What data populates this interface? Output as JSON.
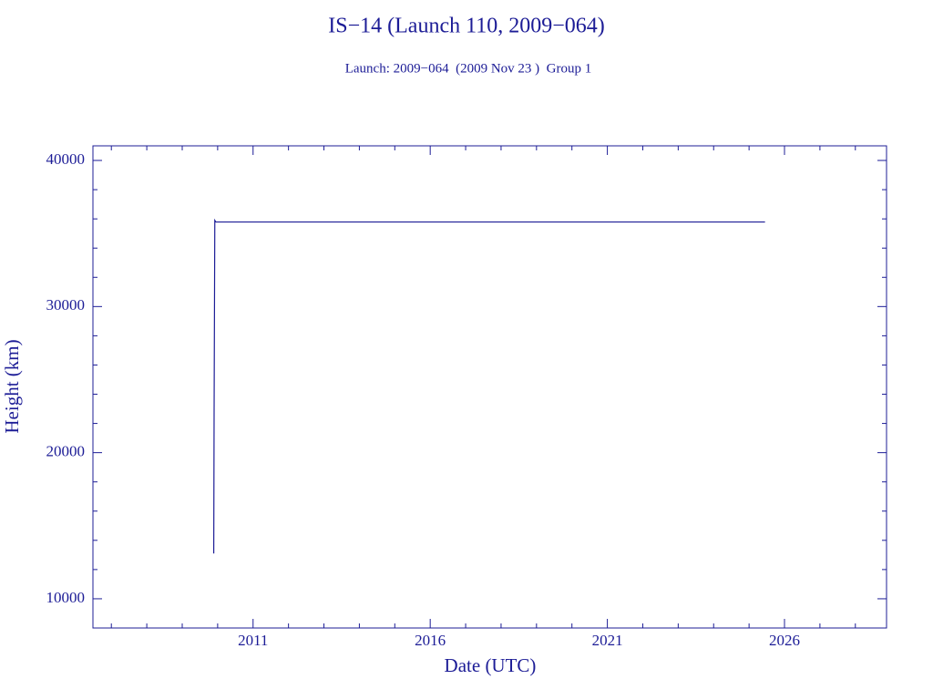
{
  "chart_data": {
    "type": "line",
    "title": "IS−14 (Launch 110, 2009−064)",
    "subtitle": "Launch: 2009−064  (2009 Nov 23 )  Group 1",
    "x_label": "Date (UTC)",
    "y_label": "Height (km)",
    "x": [
      2009.89,
      2009.9,
      2009.92,
      2009.95,
      2025.45
    ],
    "values": [
      13100,
      22600,
      35900,
      35786,
      35786
    ],
    "color": "#1c1c96",
    "xlim": [
      2006.48,
      2028.88
    ],
    "ylim": [
      8000,
      41000
    ],
    "xticks": [
      2011,
      2016,
      2021,
      2026
    ],
    "yticks": [
      10000,
      20000,
      30000,
      40000
    ],
    "xminorticks": [
      2007,
      2008,
      2009,
      2010,
      2012,
      2013,
      2014,
      2015,
      2017,
      2018,
      2019,
      2020,
      2022,
      2023,
      2024,
      2025,
      2027,
      2028
    ],
    "yminorticks": [
      8000,
      12000,
      14000,
      16000,
      18000,
      22000,
      24000,
      26000,
      28000,
      32000,
      34000,
      36000,
      38000
    ]
  }
}
